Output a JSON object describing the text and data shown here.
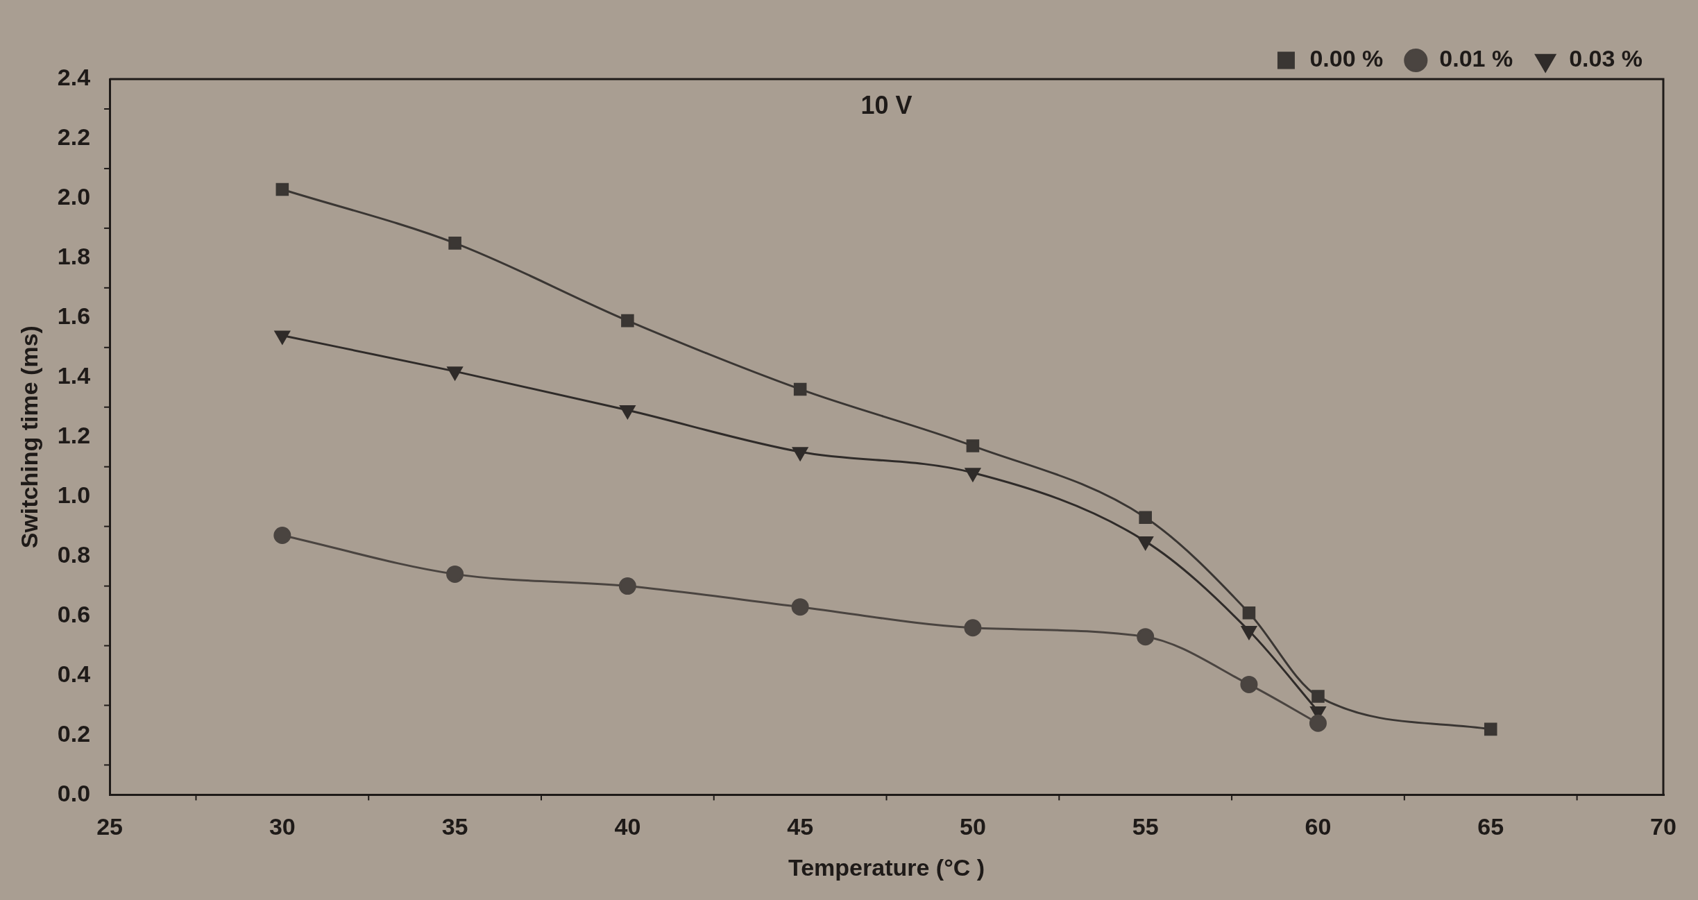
{
  "chart_data": {
    "type": "line",
    "title": "10 V",
    "xlabel": "Temperature (°C )",
    "ylabel": "Switching time (ms)",
    "xlim": [
      25,
      70
    ],
    "xticks": [
      25,
      30,
      35,
      40,
      45,
      50,
      55,
      60,
      65,
      70
    ],
    "ylim": [
      0,
      2.4
    ],
    "yticks": [
      {
        "value": 0,
        "label": "0.0"
      },
      0.2,
      0.4,
      0.6,
      0.8,
      {
        "value": 1,
        "label": "1.0"
      },
      1.2,
      1.4,
      1.6,
      1.8,
      {
        "value": 2,
        "label": "2.0"
      },
      2.2,
      2.4
    ],
    "grid": false,
    "legend": "top right",
    "line_style": "solid",
    "series": [
      {
        "name": "0.00 %",
        "color": "#3a3633",
        "marker": "square",
        "x": [
          30,
          35,
          40,
          45,
          50,
          55,
          58,
          60,
          65
        ],
        "values": [
          2.03,
          1.85,
          1.59,
          1.36,
          1.17,
          0.93,
          0.61,
          0.33,
          0.22
        ]
      },
      {
        "name": "0.01 %",
        "color": "#4a4440",
        "marker": "circle",
        "x": [
          30,
          35,
          40,
          45,
          50,
          55,
          58,
          60
        ],
        "values": [
          0.87,
          0.74,
          0.7,
          0.63,
          0.56,
          0.53,
          0.37,
          0.24
        ]
      },
      {
        "name": "0.03 %",
        "color": "#2f2b29",
        "marker": "triangle",
        "x": [
          30,
          35,
          40,
          45,
          50,
          55,
          58,
          60
        ],
        "values": [
          1.54,
          1.42,
          1.29,
          1.15,
          1.08,
          0.85,
          0.55,
          0.28
        ]
      }
    ]
  }
}
